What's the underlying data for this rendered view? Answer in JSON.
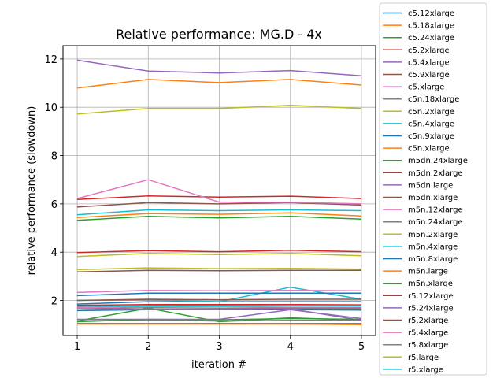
{
  "chart_data": {
    "type": "line",
    "title": "Relative performance: MG.D - 4x",
    "xlabel": "iteration #",
    "ylabel": "relative performance (slowdown)",
    "x": [
      1,
      2,
      3,
      4,
      5
    ],
    "xticks": [
      "1",
      "2",
      "3",
      "4",
      "5"
    ],
    "yticks": [
      "2",
      "4",
      "6",
      "8",
      "10",
      "12"
    ],
    "xlim": [
      0.8,
      5.2
    ],
    "ylim": [
      0.55,
      12.55
    ],
    "grid": true,
    "legend_position": "right-outside",
    "series": [
      {
        "name": "c5.12xlarge",
        "color": "#1f77b4",
        "values": [
          1.85,
          1.95,
          1.95,
          1.95,
          1.95
        ]
      },
      {
        "name": "c5.18xlarge",
        "color": "#ff7f0e",
        "values": [
          10.8,
          11.15,
          11.02,
          11.15,
          10.92
        ]
      },
      {
        "name": "c5.24xlarge",
        "color": "#2ca02c",
        "values": [
          1.15,
          1.68,
          1.12,
          1.28,
          1.18
        ]
      },
      {
        "name": "c5.2xlarge",
        "color": "#d62728",
        "values": [
          6.18,
          6.33,
          6.28,
          6.32,
          6.22
        ]
      },
      {
        "name": "c5.4xlarge",
        "color": "#9467bd",
        "values": [
          11.95,
          11.5,
          11.42,
          11.52,
          11.3
        ]
      },
      {
        "name": "c5.9xlarge",
        "color": "#8c564b",
        "values": [
          5.87,
          6.05,
          6.0,
          6.05,
          5.95
        ]
      },
      {
        "name": "c5.xlarge",
        "color": "#e377c2",
        "values": [
          6.22,
          7.0,
          6.07,
          6.07,
          6.0
        ]
      },
      {
        "name": "c5n.18xlarge",
        "color": "#7f7f7f",
        "values": [
          1.15,
          1.2,
          1.15,
          1.18,
          1.18
        ]
      },
      {
        "name": "c5n.2xlarge",
        "color": "#bcbd22",
        "values": [
          9.72,
          9.95,
          9.95,
          10.08,
          9.95
        ]
      },
      {
        "name": "c5n.4xlarge",
        "color": "#17becf",
        "values": [
          5.55,
          5.75,
          5.72,
          5.75,
          5.72
        ]
      },
      {
        "name": "c5n.9xlarge",
        "color": "#1f77b4",
        "values": [
          1.58,
          1.62,
          1.62,
          1.62,
          1.6
        ]
      },
      {
        "name": "c5n.xlarge",
        "color": "#ff7f0e",
        "values": [
          5.43,
          5.6,
          5.57,
          5.63,
          5.5
        ]
      },
      {
        "name": "m5dn.24xlarge",
        "color": "#2ca02c",
        "values": [
          5.32,
          5.48,
          5.42,
          5.48,
          5.37
        ]
      },
      {
        "name": "m5dn.2xlarge",
        "color": "#d62728",
        "values": [
          3.98,
          4.07,
          4.02,
          4.08,
          4.02
        ]
      },
      {
        "name": "m5dn.large",
        "color": "#9467bd",
        "values": [
          1.65,
          1.62,
          1.62,
          1.65,
          1.18
        ]
      },
      {
        "name": "m5dn.xlarge",
        "color": "#8c564b",
        "values": [
          3.18,
          3.25,
          3.23,
          3.25,
          3.25
        ]
      },
      {
        "name": "m5n.12xlarge",
        "color": "#e377c2",
        "values": [
          1.7,
          1.75,
          1.75,
          1.72,
          1.72
        ]
      },
      {
        "name": "m5n.24xlarge",
        "color": "#7f7f7f",
        "values": [
          1.05,
          1.05,
          1.05,
          1.05,
          1.05
        ]
      },
      {
        "name": "m5n.2xlarge",
        "color": "#bcbd22",
        "values": [
          3.82,
          3.95,
          3.9,
          3.95,
          3.85
        ]
      },
      {
        "name": "m5n.4xlarge",
        "color": "#17becf",
        "values": [
          2.0,
          2.02,
          1.95,
          2.55,
          2.05
        ]
      },
      {
        "name": "m5n.8xlarge",
        "color": "#1f77b4",
        "values": [
          2.2,
          2.3,
          2.3,
          2.3,
          2.3
        ]
      },
      {
        "name": "m5n.large",
        "color": "#ff7f0e",
        "values": [
          1.02,
          1.02,
          1.02,
          1.02,
          1.0
        ]
      },
      {
        "name": "m5n.xlarge",
        "color": "#2ca02c",
        "values": [
          1.12,
          1.22,
          1.2,
          1.25,
          1.22
        ]
      },
      {
        "name": "r5.12xlarge",
        "color": "#d62728",
        "values": [
          1.8,
          1.83,
          1.83,
          1.83,
          1.82
        ]
      },
      {
        "name": "r5.24xlarge",
        "color": "#9467bd",
        "values": [
          1.22,
          1.22,
          1.22,
          1.62,
          1.25
        ]
      },
      {
        "name": "r5.2xlarge",
        "color": "#8c564b",
        "values": [
          2.0,
          2.05,
          2.03,
          2.05,
          2.05
        ]
      },
      {
        "name": "r5.4xlarge",
        "color": "#e377c2",
        "values": [
          2.33,
          2.42,
          2.4,
          2.42,
          2.4
        ]
      },
      {
        "name": "r5.8xlarge",
        "color": "#7f7f7f",
        "values": [
          1.65,
          1.7,
          1.68,
          1.68,
          1.68
        ]
      },
      {
        "name": "r5.large",
        "color": "#bcbd22",
        "values": [
          3.28,
          3.35,
          3.32,
          3.33,
          3.3
        ]
      },
      {
        "name": "r5.xlarge",
        "color": "#17becf",
        "values": [
          1.75,
          1.78,
          1.78,
          1.8,
          1.78
        ]
      }
    ]
  }
}
